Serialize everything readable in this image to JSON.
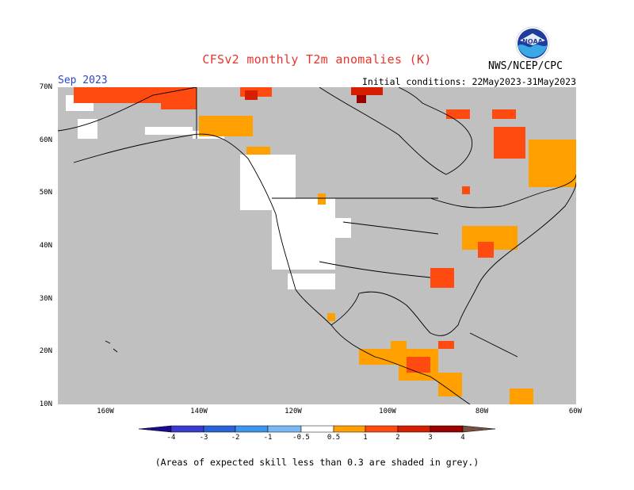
{
  "title": "CFSv2 monthly T2m anomalies (K)",
  "month": "Sep 2023",
  "initial_conditions": "Initial conditions: 22May2023-31May2023",
  "agency": "NWS/NCEP/CPC",
  "logo_text": "NOAA",
  "footnote": "(Areas of expected skill less than 0.3 are shaded in grey.)",
  "map": {
    "lat_labels": [
      "70N",
      "60N",
      "50N",
      "40N",
      "30N",
      "20N",
      "10N"
    ],
    "lon_labels": [
      "160W",
      "140W",
      "120W",
      "100W",
      "80W",
      "60W"
    ],
    "grey_color": "#c0c0c0"
  },
  "legend": {
    "labels": [
      "-4",
      "-3",
      "-2",
      "-1",
      "-0.5",
      "0.5",
      "1",
      "2",
      "3",
      "4"
    ],
    "colors": [
      "#1a0c8c",
      "#3b3bd0",
      "#2a62d8",
      "#3c96ec",
      "#7ab8f4",
      "#ffffff",
      "#ffa000",
      "#ff4a10",
      "#d61f00",
      "#9a0000",
      "#c8a298",
      "#7a4f44"
    ]
  }
}
